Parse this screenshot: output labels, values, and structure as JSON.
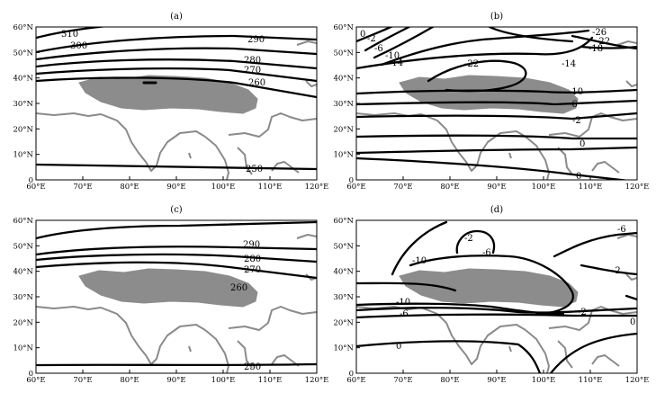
{
  "figure": {
    "x_ticks": [
      "60°E",
      "70°E",
      "80°E",
      "90°E",
      "100°E",
      "110°E",
      "120°E"
    ],
    "y_ticks": [
      "0",
      "10°N",
      "20°N",
      "30°N",
      "40°N",
      "50°N",
      "60°N"
    ],
    "colors": {
      "contour": "#000000",
      "coastline": "#8a8a8a",
      "plateau": "#8c8c8c"
    },
    "panels": [
      {
        "label": "(a)",
        "contour_labels": [
          "310",
          "300",
          "290",
          "280",
          "270",
          "260",
          "250"
        ]
      },
      {
        "label": "(b)",
        "contour_labels": [
          "0",
          "-2",
          "-6",
          "-10",
          "-14",
          "-26",
          "-22",
          "-18",
          "-22",
          "-14",
          "-10",
          "-6",
          "-2",
          "0",
          "0"
        ]
      },
      {
        "label": "(c)",
        "contour_labels": [
          "290",
          "280",
          "270",
          "260",
          "250"
        ]
      },
      {
        "label": "(d)",
        "contour_labels": [
          "-2",
          "-6",
          "-10",
          "-6",
          "-2",
          "-10",
          "-6",
          "-2",
          "0",
          "0"
        ]
      }
    ]
  }
}
